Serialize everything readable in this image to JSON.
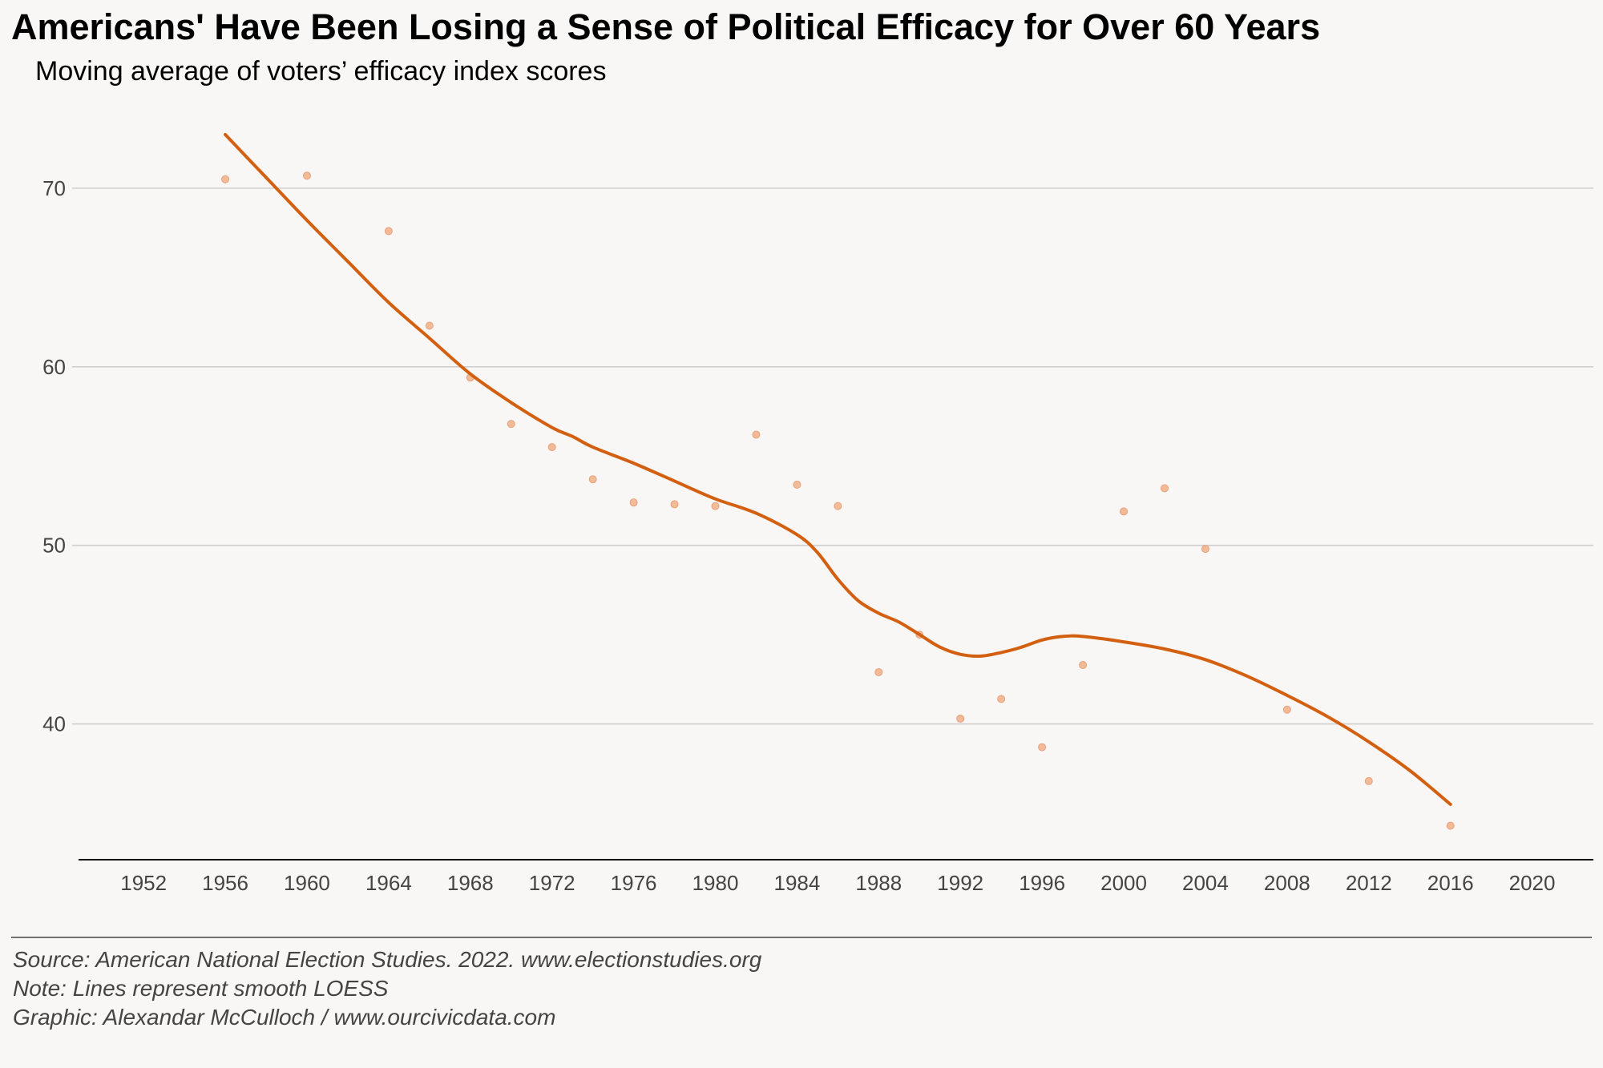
{
  "chart_data": {
    "type": "scatter",
    "title": "Americans' Have Been Losing a Sense of Political Efficacy for Over 60 Years",
    "subtitle": "Moving average of voters’ efficacy index scores",
    "xlabel": "",
    "ylabel": "",
    "xlim": [
      1948.5,
      2023
    ],
    "ylim": [
      32.4,
      73
    ],
    "x_ticks": [
      1952,
      1956,
      1960,
      1964,
      1968,
      1972,
      1976,
      1980,
      1984,
      1988,
      1992,
      1996,
      2000,
      2004,
      2008,
      2012,
      2016,
      2020
    ],
    "y_ticks": [
      40,
      50,
      60,
      70
    ],
    "grid": "horizontal",
    "legend": "none",
    "points": [
      {
        "x": 1956,
        "y": 70.5
      },
      {
        "x": 1960,
        "y": 70.7
      },
      {
        "x": 1964,
        "y": 67.6
      },
      {
        "x": 1966,
        "y": 62.3
      },
      {
        "x": 1968,
        "y": 59.4
      },
      {
        "x": 1970,
        "y": 56.8
      },
      {
        "x": 1972,
        "y": 55.5
      },
      {
        "x": 1974,
        "y": 53.7
      },
      {
        "x": 1976,
        "y": 52.4
      },
      {
        "x": 1978,
        "y": 52.3
      },
      {
        "x": 1980,
        "y": 52.2
      },
      {
        "x": 1982,
        "y": 56.2
      },
      {
        "x": 1984,
        "y": 53.4
      },
      {
        "x": 1986,
        "y": 52.2
      },
      {
        "x": 1988,
        "y": 42.9
      },
      {
        "x": 1990,
        "y": 45.0
      },
      {
        "x": 1992,
        "y": 40.3
      },
      {
        "x": 1994,
        "y": 41.4
      },
      {
        "x": 1996,
        "y": 38.7
      },
      {
        "x": 1998,
        "y": 43.3
      },
      {
        "x": 2000,
        "y": 51.9
      },
      {
        "x": 2002,
        "y": 53.2
      },
      {
        "x": 2004,
        "y": 49.8
      },
      {
        "x": 2008,
        "y": 40.8
      },
      {
        "x": 2012,
        "y": 36.8
      },
      {
        "x": 2016,
        "y": 34.3
      }
    ],
    "smooth_line": {
      "x": [
        1956,
        1958,
        1960,
        1962,
        1964,
        1966,
        1968,
        1970,
        1972,
        1973,
        1974,
        1976,
        1978,
        1980,
        1982,
        1984,
        1985,
        1986,
        1987,
        1988,
        1989,
        1990,
        1991,
        1992,
        1993,
        1994,
        1995,
        1996,
        1997,
        1998,
        2000,
        2002,
        2004,
        2006,
        2008,
        2010,
        2012,
        2014,
        2016
      ],
      "y": [
        73.0,
        70.6,
        68.2,
        65.9,
        63.6,
        61.6,
        59.6,
        58.0,
        56.6,
        56.1,
        55.5,
        54.6,
        53.6,
        52.6,
        51.8,
        50.6,
        49.6,
        48.1,
        46.9,
        46.2,
        45.7,
        45.0,
        44.3,
        43.9,
        43.8,
        44.0,
        44.3,
        44.7,
        44.9,
        44.9,
        44.6,
        44.2,
        43.6,
        42.7,
        41.6,
        40.4,
        39.0,
        37.4,
        35.5
      ]
    },
    "colors": {
      "line": "#d35f10",
      "points": "#f0b48e",
      "grid": "#cfcfcf",
      "axis": "#000000"
    }
  },
  "captions": {
    "source": "Source: American National Election Studies. 2022. www.electionstudies.org",
    "note": "Note: Lines represent smooth LOESS",
    "graphic": "Graphic: Alexandar McCulloch / www.ourcivicdata.com"
  }
}
